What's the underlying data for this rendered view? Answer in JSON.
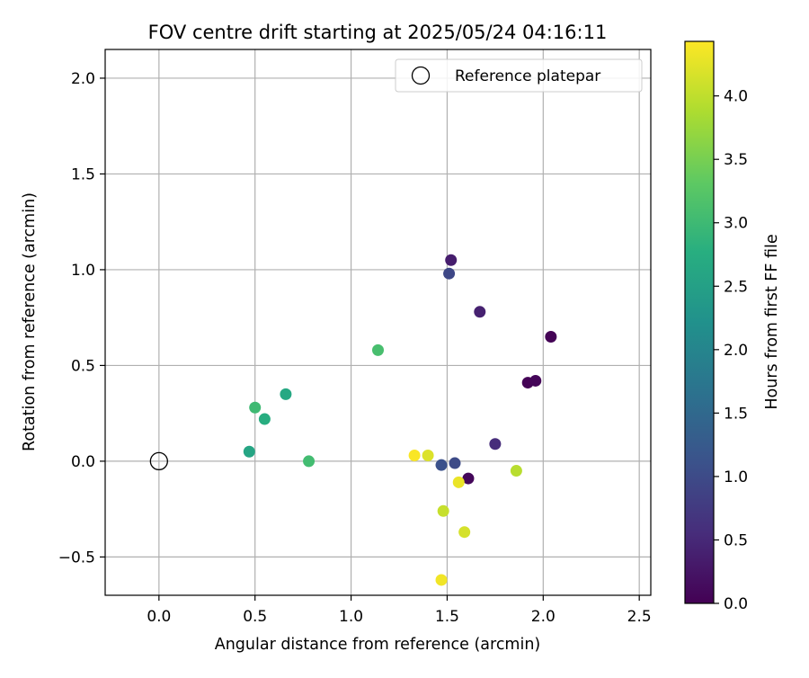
{
  "chart_data": {
    "type": "scatter",
    "title": "FOV centre drift starting at 2025/05/24 04:16:11",
    "xlabel": "Angular distance from reference (arcmin)",
    "ylabel": "Rotation from reference (arcmin)",
    "xlim": [
      -0.28,
      2.56
    ],
    "ylim": [
      -0.7,
      2.15
    ],
    "xticks": [
      0.0,
      0.5,
      1.0,
      1.5,
      2.0,
      2.5
    ],
    "xtick_labels": [
      "0.0",
      "0.5",
      "1.0",
      "1.5",
      "2.0",
      "2.5"
    ],
    "yticks": [
      -0.5,
      0.0,
      0.5,
      1.0,
      1.5,
      2.0
    ],
    "ytick_labels": [
      "−0.5",
      "0.0",
      "0.5",
      "1.0",
      "1.5",
      "2.0"
    ],
    "grid": true,
    "legend": {
      "position": "top-right",
      "label": "Reference platepar"
    },
    "reference_point": {
      "x": 0.0,
      "y": 0.0
    },
    "colorbar": {
      "label": "Hours from first FF file",
      "colormap": "viridis",
      "range": [
        0.0,
        4.43
      ],
      "ticks": [
        0.0,
        0.5,
        1.0,
        1.5,
        2.0,
        2.5,
        3.0,
        3.5,
        4.0
      ],
      "tick_labels": [
        "0.0",
        "0.5",
        "1.0",
        "1.5",
        "2.0",
        "2.5",
        "3.0",
        "3.5",
        "4.0"
      ]
    },
    "points": [
      {
        "x": 2.04,
        "y": 0.65,
        "c": 0.02
      },
      {
        "x": 1.92,
        "y": 0.41,
        "c": 0.03
      },
      {
        "x": 1.96,
        "y": 0.42,
        "c": 0.05
      },
      {
        "x": 1.61,
        "y": -0.09,
        "c": 0.08
      },
      {
        "x": 1.52,
        "y": 1.05,
        "c": 0.35
      },
      {
        "x": 1.67,
        "y": 0.78,
        "c": 0.4
      },
      {
        "x": 1.75,
        "y": 0.09,
        "c": 0.55
      },
      {
        "x": 1.51,
        "y": 0.98,
        "c": 0.95
      },
      {
        "x": 1.54,
        "y": -0.01,
        "c": 1.0
      },
      {
        "x": 1.47,
        "y": -0.02,
        "c": 1.1
      },
      {
        "x": 0.47,
        "y": 0.05,
        "c": 2.6
      },
      {
        "x": 0.66,
        "y": 0.35,
        "c": 2.65
      },
      {
        "x": 0.55,
        "y": 0.22,
        "c": 2.75
      },
      {
        "x": 0.5,
        "y": 0.28,
        "c": 3.0
      },
      {
        "x": 0.78,
        "y": 0.0,
        "c": 3.05
      },
      {
        "x": 1.14,
        "y": 0.58,
        "c": 3.1
      },
      {
        "x": 1.86,
        "y": -0.05,
        "c": 3.95
      },
      {
        "x": 1.48,
        "y": -0.26,
        "c": 4.05
      },
      {
        "x": 1.59,
        "y": -0.37,
        "c": 4.15
      },
      {
        "x": 1.4,
        "y": 0.03,
        "c": 4.2
      },
      {
        "x": 1.56,
        "y": -0.11,
        "c": 4.3
      },
      {
        "x": 1.47,
        "y": -0.62,
        "c": 4.35
      },
      {
        "x": 1.33,
        "y": 0.03,
        "c": 4.4
      }
    ]
  }
}
